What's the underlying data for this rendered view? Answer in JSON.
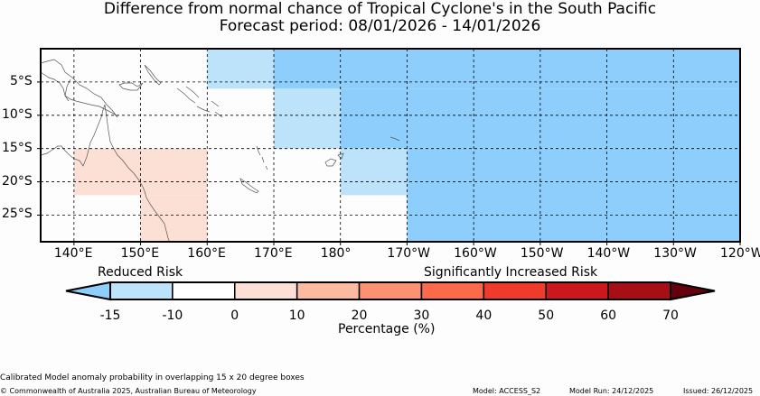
{
  "title": {
    "line1": "Difference from normal chance of Tropical Cyclone's in the South Pacific",
    "line2": "Forecast period: 08/01/2026 - 14/01/2026"
  },
  "map": {
    "lat_labels": [
      "5°S",
      "10°S",
      "15°S",
      "20°S",
      "25°S"
    ],
    "lon_labels": [
      "140°E",
      "150°E",
      "160°E",
      "170°E",
      "180°",
      "170°W",
      "160°W",
      "150°W",
      "140°W",
      "130°W",
      "120°W"
    ],
    "lon_range_deg": [
      135,
      240
    ],
    "lat_range_deg": [
      0,
      -29
    ],
    "cells": [
      {
        "lon": [
          160,
          170
        ],
        "lat": [
          0,
          -6
        ],
        "color": "#bde3fb"
      },
      {
        "lon": [
          170,
          180
        ],
        "lat": [
          0,
          -6
        ],
        "color": "#8ecefc"
      },
      {
        "lon": [
          180,
          240
        ],
        "lat": [
          0,
          -6
        ],
        "color": "#8ecefc"
      },
      {
        "lon": [
          170,
          180
        ],
        "lat": [
          -6,
          -15
        ],
        "color": "#bde3fb"
      },
      {
        "lon": [
          180,
          240
        ],
        "lat": [
          -6,
          -15
        ],
        "color": "#8ecefc"
      },
      {
        "lon": [
          180,
          190
        ],
        "lat": [
          -15,
          -22
        ],
        "color": "#bde3fb"
      },
      {
        "lon": [
          190,
          240
        ],
        "lat": [
          -15,
          -29
        ],
        "color": "#8ecefc"
      },
      {
        "lon": [
          140,
          160
        ],
        "lat": [
          -15,
          -22
        ],
        "color": "#fde0d5"
      },
      {
        "lon": [
          150,
          160
        ],
        "lat": [
          -22,
          -29
        ],
        "color": "#fde0d5"
      }
    ]
  },
  "legend": {
    "reduced_label": "Reduced Risk",
    "increased_label": "Significantly Increased Risk",
    "ticks": [
      "-15",
      "-10",
      "0",
      "10",
      "20",
      "30",
      "40",
      "50",
      "60",
      "70"
    ],
    "colors": [
      "#bde3fb",
      "#ffffff",
      "#fde0d5",
      "#fcbba1",
      "#fc9272",
      "#fb6a4a",
      "#ef3b2c",
      "#cb181d",
      "#a50f15"
    ],
    "under_color": "#8ecefc",
    "over_color": "#67000d",
    "xlabel": "Percentage (%)"
  },
  "footer": {
    "method": "Calibrated Model anomaly probability in overlapping 15 x 20 degree boxes",
    "copyright": "© Commonwealth of Australia 2025, Australian Bureau of Meteorology",
    "model": "Model: ACCESS_S2",
    "model_run": "Model Run: 24/12/2025",
    "issued": "Issued: 26/12/2025"
  }
}
